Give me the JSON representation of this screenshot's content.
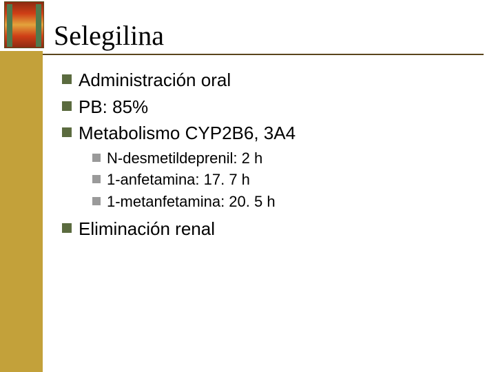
{
  "title": "Selegilina",
  "colors": {
    "gold_bar": "#c3a13a",
    "title_rule": "#5a451c",
    "bullet_level1": "#5b6b3f",
    "bullet_level2": "#9a9a9a",
    "background": "#ffffff",
    "text": "#000000"
  },
  "typography": {
    "title_font": "Times New Roman",
    "title_size_pt": 30,
    "body_font": "Arial",
    "body_size_pt_level1": 20,
    "body_size_pt_level2": 17
  },
  "items": {
    "0": {
      "text": "Administración oral"
    },
    "1": {
      "text": "PB: 85%"
    },
    "2": {
      "text": "Metabolismo CYP2B6, 3A4"
    },
    "3": {
      "text": "Eliminación renal"
    }
  },
  "subitems": {
    "0": {
      "text": "N-desmetildeprenil: 2 h"
    },
    "1": {
      "text": "1-anfetamina: 17. 7 h"
    },
    "2": {
      "text": "1-metanfetamina: 20. 5 h"
    }
  }
}
